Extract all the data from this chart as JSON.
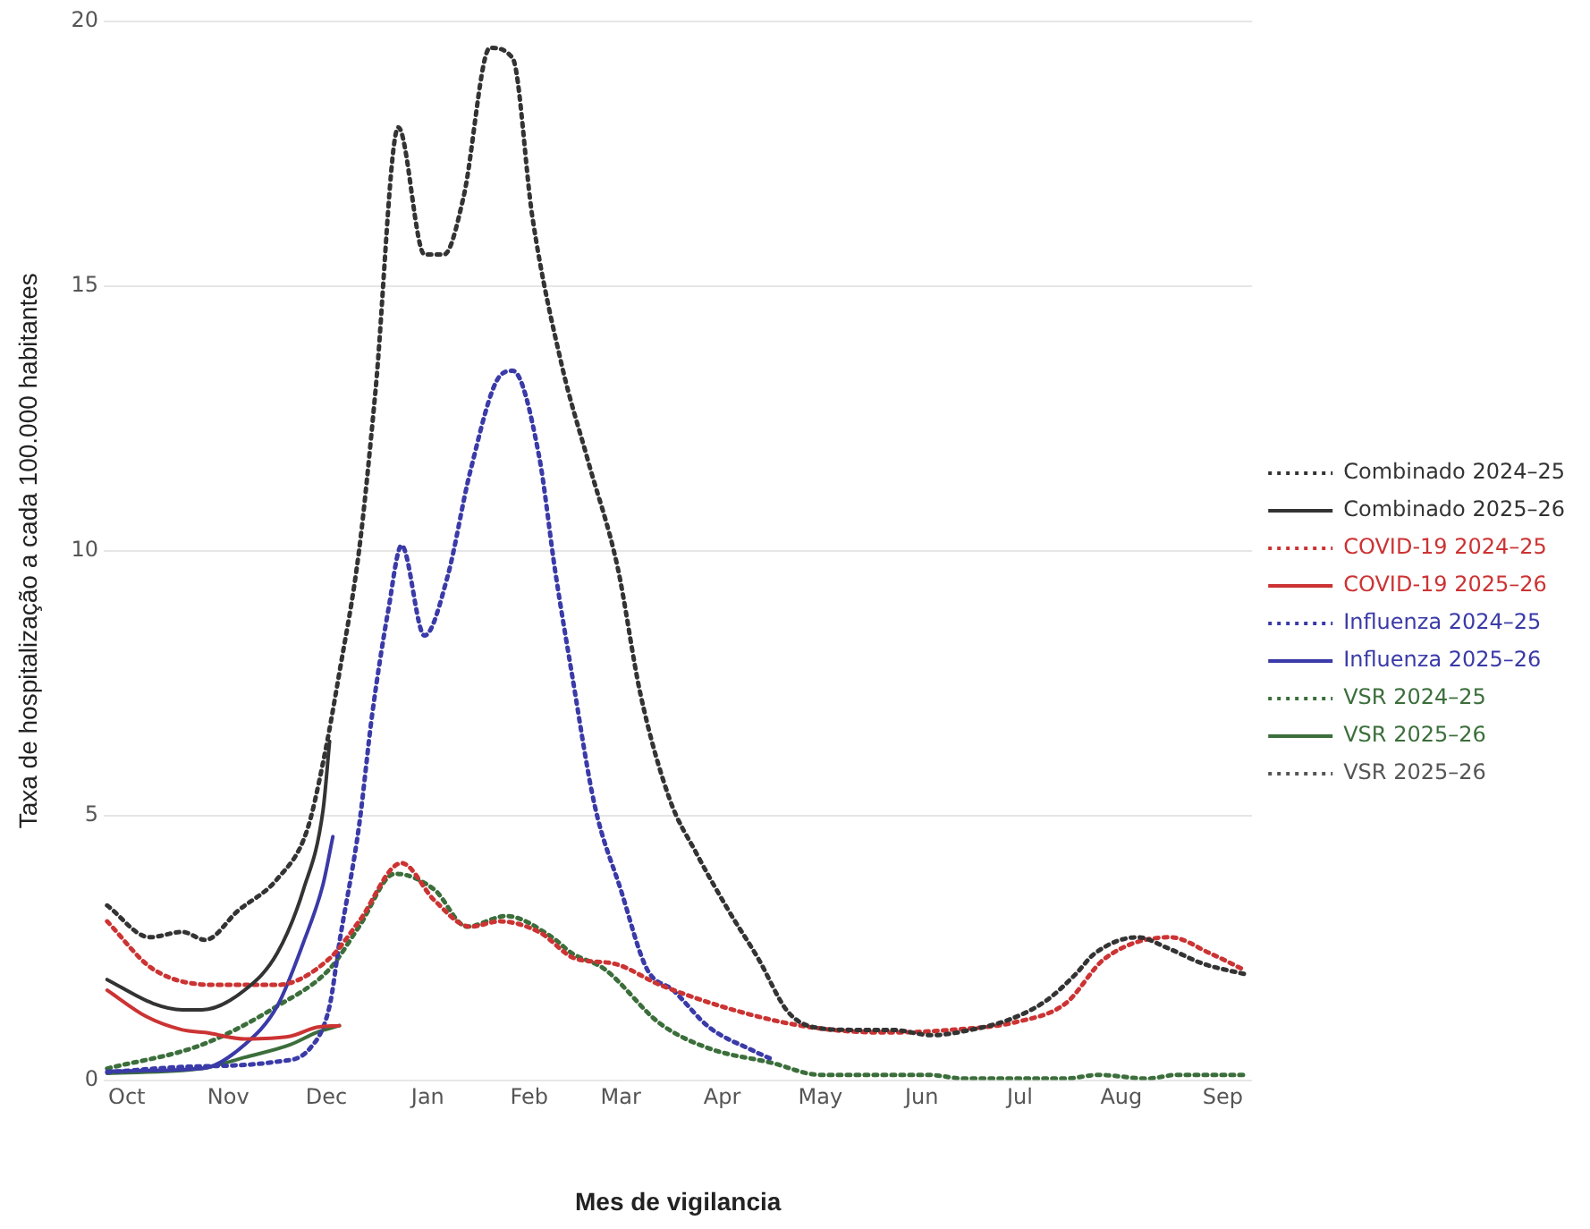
{
  "chart_data": {
    "type": "line",
    "xlabel": "Mes de vigilancia",
    "ylabel": "Taxa de hospitalização a cada 100.000 habitantes",
    "xlim": [
      "2024-10-08",
      "2025-09-24"
    ],
    "xticks": [
      {
        "value": "2024-10-15",
        "label": "Oct"
      },
      {
        "value": "2024-11-15",
        "label": "Nov"
      },
      {
        "value": "2024-12-15",
        "label": "Dec"
      },
      {
        "value": "2025-01-15",
        "label": "Jan"
      },
      {
        "value": "2025-02-15",
        "label": "Feb"
      },
      {
        "value": "2025-03-15",
        "label": "Mar"
      },
      {
        "value": "2025-04-15",
        "label": "Apr"
      },
      {
        "value": "2025-05-15",
        "label": "May"
      },
      {
        "value": "2025-06-15",
        "label": "Jun"
      },
      {
        "value": "2025-07-15",
        "label": "Jul"
      },
      {
        "value": "2025-08-15",
        "label": "Aug"
      },
      {
        "value": "2025-09-15",
        "label": "Sep"
      }
    ],
    "ylim": [
      0,
      20
    ],
    "yticks": [
      0,
      5,
      10,
      15,
      20
    ],
    "grid": "y",
    "legend": "right",
    "marker": "none",
    "series": [
      {
        "name": "Combinado 2024–25",
        "color": "#333333",
        "line_style": "dotted",
        "x": [
          "2024-10-09",
          "2024-10-22",
          "2024-11-01",
          "2024-11-08",
          "2024-11-18",
          "2024-11-30",
          "2024-12-09",
          "2024-12-14",
          "2024-12-19",
          "2024-12-25",
          "2024-12-30",
          "2025-01-06",
          "2025-01-14",
          "2025-01-20",
          "2025-01-26",
          "2025-02-03",
          "2025-02-10",
          "2025-02-16",
          "2025-02-25",
          "2025-03-05",
          "2025-03-14",
          "2025-03-21",
          "2025-03-30",
          "2025-04-07",
          "2025-04-17",
          "2025-04-26",
          "2025-05-05",
          "2025-05-13",
          "2025-05-25",
          "2025-06-06",
          "2025-06-18",
          "2025-06-30",
          "2025-07-12",
          "2025-07-23",
          "2025-08-01",
          "2025-08-07",
          "2025-08-20",
          "2025-08-29",
          "2025-09-09",
          "2025-09-22"
        ],
        "values": [
          3.3,
          2.7,
          2.8,
          2.65,
          3.2,
          3.8,
          4.7,
          6,
          7.7,
          10,
          13,
          18,
          15.6,
          15.6,
          16.7,
          19.5,
          19.3,
          16.3,
          13.5,
          11.7,
          9.7,
          7.3,
          5.3,
          4.3,
          3.2,
          2.3,
          1.3,
          1,
          0.95,
          0.95,
          0.85,
          0.95,
          1.15,
          1.5,
          2,
          2.4,
          2.7,
          2.5,
          2.2,
          2
        ]
      },
      {
        "name": "Combinado 2025–26",
        "color": "#333333",
        "line_style": "solid",
        "x": [
          "2024-10-09",
          "2024-10-23",
          "2024-11-01",
          "2024-11-07",
          "2024-11-20",
          "2024-11-30",
          "2024-12-08",
          "2024-12-14",
          "2024-12-16"
        ],
        "values": [
          1.9,
          1.45,
          1.33,
          1.33,
          1.7,
          2.4,
          3.6,
          5.1,
          6.4
        ]
      },
      {
        "name": "COVID-19 2024–25",
        "color": "#cc3333",
        "line_style": "dotted",
        "x": [
          "2024-10-09",
          "2024-10-23",
          "2024-11-11",
          "2024-11-30",
          "2024-12-16",
          "2024-12-25",
          "2025-01-07",
          "2025-01-17",
          "2025-01-28",
          "2025-02-06",
          "2025-02-18",
          "2025-03-01",
          "2025-03-13",
          "2025-03-27",
          "2025-04-20",
          "2025-05-12",
          "2025-06-04",
          "2025-06-24",
          "2025-07-14",
          "2025-07-29",
          "2025-08-10",
          "2025-08-30",
          "2025-09-11",
          "2025-09-21"
        ],
        "values": [
          3,
          2.1,
          1.8,
          1.8,
          2.3,
          3,
          4.1,
          3.4,
          2.9,
          3,
          2.8,
          2.3,
          2.2,
          1.8,
          1.3,
          1,
          0.9,
          0.95,
          1.1,
          1.45,
          2.3,
          2.7,
          2.4,
          2.1
        ]
      },
      {
        "name": "COVID-19 2025–26",
        "color": "#cc3333",
        "line_style": "solid",
        "x": [
          "2024-10-09",
          "2024-10-21",
          "2024-11-01",
          "2024-11-08",
          "2024-11-20",
          "2024-12-04",
          "2024-12-12",
          "2024-12-19"
        ],
        "values": [
          1.7,
          1.2,
          0.95,
          0.9,
          0.78,
          0.83,
          1,
          1.03
        ]
      },
      {
        "name": "Influenza 2024–25",
        "color": "#3a3aa8",
        "line_style": "dotted",
        "x": [
          "2024-10-09",
          "2024-11-01",
          "2024-11-30",
          "2024-12-10",
          "2024-12-16",
          "2024-12-19",
          "2024-12-25",
          "2024-12-29",
          "2025-01-03",
          "2025-01-07",
          "2025-01-14",
          "2025-01-21",
          "2025-01-28",
          "2025-02-06",
          "2025-02-10",
          "2025-02-18",
          "2025-02-23",
          "2025-02-28",
          "2025-03-07",
          "2025-03-15",
          "2025-03-23",
          "2025-03-31",
          "2025-04-11",
          "2025-04-24",
          "2025-04-30"
        ],
        "values": [
          0.15,
          0.25,
          0.35,
          0.6,
          1.4,
          2.6,
          4.8,
          6.9,
          8.9,
          10.1,
          8.4,
          9.5,
          11.5,
          13.3,
          13.4,
          11.8,
          9.6,
          7.7,
          5.2,
          3.6,
          2.1,
          1.7,
          1,
          0.57,
          0.4
        ]
      },
      {
        "name": "Influenza 2025–26",
        "color": "#3a3aa8",
        "line_style": "solid",
        "x": [
          "2024-10-09",
          "2024-11-07",
          "2024-11-20",
          "2024-11-30",
          "2024-12-08",
          "2024-12-14",
          "2024-12-17"
        ],
        "values": [
          0.17,
          0.22,
          0.67,
          1.4,
          2.6,
          3.7,
          4.6
        ]
      },
      {
        "name": "VSR 2024–25",
        "color": "#3b6e3b",
        "line_style": "dotted",
        "x": [
          "2024-10-09",
          "2024-11-07",
          "2024-11-30",
          "2024-12-16",
          "2024-12-25",
          "2025-01-05",
          "2025-01-17",
          "2025-01-27",
          "2025-02-08",
          "2025-02-22",
          "2025-02-28",
          "2025-03-10",
          "2025-03-27",
          "2025-04-11",
          "2025-04-30",
          "2025-05-15",
          "2025-06-17",
          "2025-06-28",
          "2025-07-29",
          "2025-08-08",
          "2025-08-23",
          "2025-09-01",
          "2025-09-22"
        ],
        "values": [
          0.22,
          0.67,
          1.4,
          2.1,
          2.9,
          3.9,
          3.6,
          2.9,
          3.1,
          2.7,
          2.4,
          2.1,
          1.07,
          0.6,
          0.33,
          0.1,
          0.1,
          0.03,
          0.03,
          0.1,
          0.03,
          0.1,
          0.1
        ]
      },
      {
        "name": "VSR 2025–26",
        "color": "#3b6e3b",
        "line_style": "solid",
        "x": [
          "2024-10-09",
          "2024-11-07",
          "2024-11-20",
          "2024-12-04",
          "2024-12-12",
          "2024-12-19"
        ],
        "values": [
          0.13,
          0.22,
          0.43,
          0.67,
          0.9,
          1.03
        ]
      },
      {
        "name": "VSR 2025–26",
        "color": "#555555",
        "line_style": "dotted"
      }
    ]
  }
}
